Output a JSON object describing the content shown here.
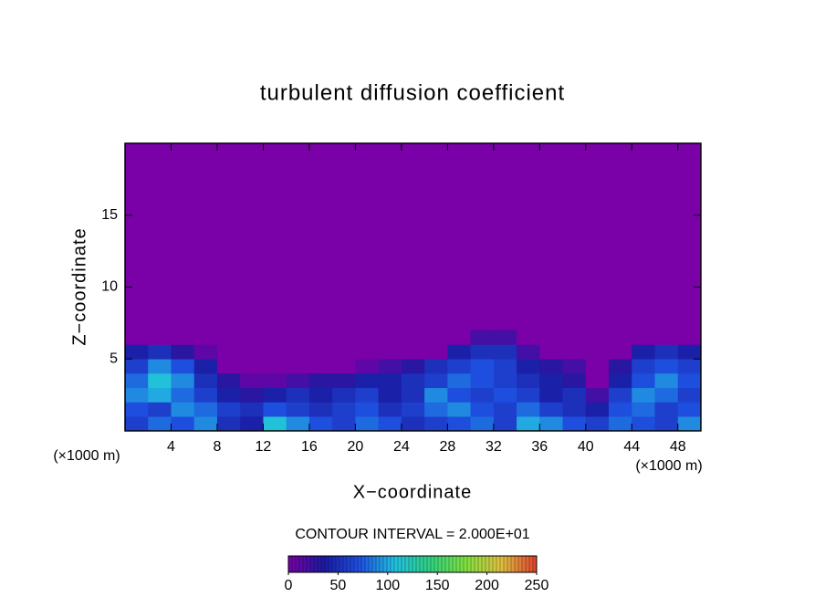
{
  "chart_data": {
    "type": "contour",
    "title": "turbulent diffusion coefficient",
    "x_label": "X−coordinate",
    "y_label": "Z−coordinate",
    "x_unit_label_left": "(×1000 m)",
    "x_unit_label_right": "(×1000 m)",
    "contour_interval_label": "CONTOUR INTERVAL = 2.000E+01",
    "xlim": [
      0,
      50
    ],
    "ylim": [
      0,
      20
    ],
    "xticks": [
      4,
      8,
      12,
      16,
      20,
      24,
      28,
      32,
      36,
      40,
      44,
      48
    ],
    "yticks": [
      5,
      10,
      15
    ],
    "x": [
      1,
      3,
      5,
      7,
      9,
      11,
      13,
      15,
      17,
      19,
      21,
      23,
      25,
      27,
      29,
      31,
      33,
      35,
      37,
      39,
      41,
      43,
      45,
      47,
      49
    ],
    "y": [
      0.5,
      1.5,
      2.5,
      3.5,
      4.5,
      5.5,
      6.5
    ],
    "z": [
      [
        60,
        80,
        70,
        90,
        50,
        40,
        110,
        90,
        70,
        60,
        80,
        70,
        50,
        60,
        70,
        80,
        60,
        100,
        90,
        70,
        60,
        80,
        70,
        60,
        90
      ],
      [
        70,
        60,
        90,
        80,
        60,
        50,
        70,
        60,
        50,
        60,
        70,
        50,
        60,
        80,
        90,
        70,
        60,
        80,
        60,
        50,
        40,
        70,
        80,
        60,
        70
      ],
      [
        90,
        100,
        80,
        60,
        40,
        30,
        40,
        50,
        40,
        50,
        60,
        40,
        50,
        90,
        70,
        60,
        70,
        60,
        40,
        50,
        20,
        60,
        90,
        80,
        60
      ],
      [
        80,
        110,
        90,
        50,
        30,
        10,
        10,
        20,
        30,
        30,
        40,
        40,
        50,
        60,
        80,
        70,
        60,
        50,
        40,
        30,
        0,
        40,
        70,
        90,
        70
      ],
      [
        60,
        90,
        70,
        40,
        0,
        0,
        0,
        0,
        0,
        0,
        10,
        20,
        30,
        50,
        60,
        70,
        60,
        40,
        30,
        20,
        0,
        30,
        60,
        70,
        60
      ],
      [
        40,
        50,
        30,
        10,
        0,
        0,
        0,
        0,
        0,
        0,
        0,
        0,
        0,
        0,
        40,
        50,
        50,
        20,
        0,
        0,
        0,
        0,
        40,
        50,
        40
      ],
      [
        0,
        0,
        0,
        0,
        0,
        0,
        0,
        0,
        0,
        0,
        0,
        0,
        0,
        0,
        0,
        20,
        20,
        0,
        0,
        0,
        0,
        0,
        0,
        0,
        0
      ]
    ],
    "zlim": [
      0,
      250
    ],
    "colorbar_ticks": [
      0,
      50,
      100,
      150,
      200,
      250
    ],
    "colormap": [
      "#7a00a8",
      "#1a1aa0",
      "#1e50e0",
      "#20c0e0",
      "#30d080",
      "#80e040",
      "#e0c040",
      "#e04030"
    ]
  }
}
